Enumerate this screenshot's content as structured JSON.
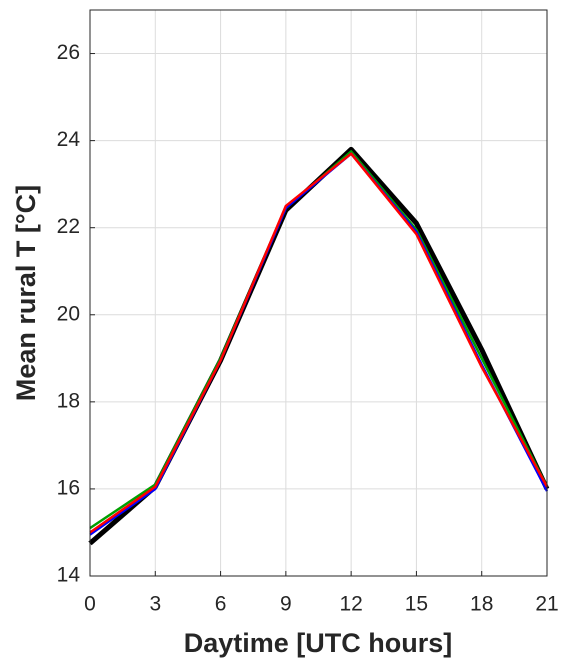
{
  "chart_data": {
    "type": "line",
    "x_label": "Daytime [UTC hours]",
    "y_label": "Mean rural T [°C]",
    "x": [
      0,
      3,
      6,
      9,
      12,
      15,
      18,
      21
    ],
    "series": [
      {
        "color": "#000000",
        "values": [
          14.75,
          16.05,
          18.95,
          22.4,
          23.8,
          22.1,
          19.2,
          16.0
        ]
      },
      {
        "color": "#00a000",
        "values": [
          15.1,
          16.1,
          19.0,
          22.45,
          23.75,
          21.95,
          19.0,
          16.05
        ]
      },
      {
        "color": "#0000ff",
        "values": [
          14.95,
          16.0,
          18.95,
          22.45,
          23.7,
          21.9,
          18.85,
          15.95
        ]
      },
      {
        "color": "#ff0000",
        "values": [
          15.0,
          16.05,
          18.95,
          22.5,
          23.7,
          21.85,
          18.8,
          16.05
        ]
      }
    ],
    "xlim": [
      0,
      21
    ],
    "xticks": [
      0,
      3,
      6,
      9,
      12,
      15,
      18,
      21
    ],
    "ylim": [
      14,
      27
    ],
    "yticks": [
      14,
      16,
      18,
      20,
      22,
      24,
      26
    ],
    "grid": true
  }
}
